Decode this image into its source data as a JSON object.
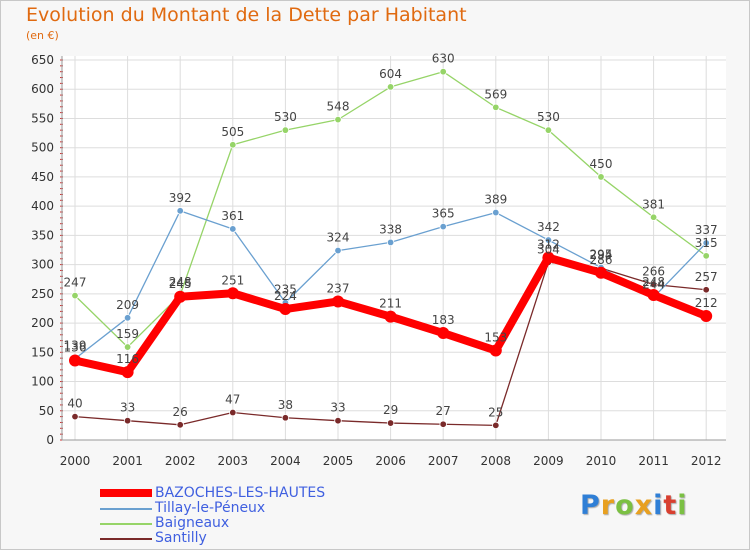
{
  "title": "Evolution du Montant de la Dette par Habitant",
  "subtitle": "(en €)",
  "logo": {
    "letters": [
      "P",
      "r",
      "o",
      "x",
      "i",
      "t",
      "i"
    ],
    "colors": [
      "#2f7fd6",
      "#e8a020",
      "#7bc043",
      "#e8a020",
      "#2f7fd6",
      "#d84030",
      "#7bc043"
    ]
  },
  "chart_data": {
    "type": "line",
    "x": [
      "2000",
      "2001",
      "2002",
      "2003",
      "2004",
      "2005",
      "2006",
      "2007",
      "2008",
      "2009",
      "2010",
      "2011",
      "2012"
    ],
    "ylim": [
      0,
      650
    ],
    "yticks": [
      0,
      50,
      100,
      150,
      200,
      250,
      300,
      350,
      400,
      450,
      500,
      550,
      600,
      650
    ],
    "grid": true,
    "legend_position": "bottom-left",
    "series": [
      {
        "name": "BAZOCHES-LES-HAUTES",
        "color": "#ff0000",
        "values": [
          136,
          116,
          245,
          251,
          224,
          237,
          211,
          183,
          153,
          312,
          286,
          248,
          212
        ]
      },
      {
        "name": "Tillay-le-Péneux",
        "color": "#6aa0d0",
        "values": [
          139,
          209,
          392,
          361,
          235,
          324,
          338,
          365,
          389,
          342,
          295,
          244,
          337
        ]
      },
      {
        "name": "Baigneaux",
        "color": "#96d468",
        "values": [
          247,
          159,
          248,
          505,
          530,
          548,
          604,
          630,
          569,
          530,
          450,
          381,
          315
        ]
      },
      {
        "name": "Santilly",
        "color": "#7a2a2a",
        "values": [
          40,
          33,
          26,
          47,
          38,
          33,
          29,
          27,
          25,
          304,
          294,
          266,
          257
        ]
      }
    ]
  }
}
